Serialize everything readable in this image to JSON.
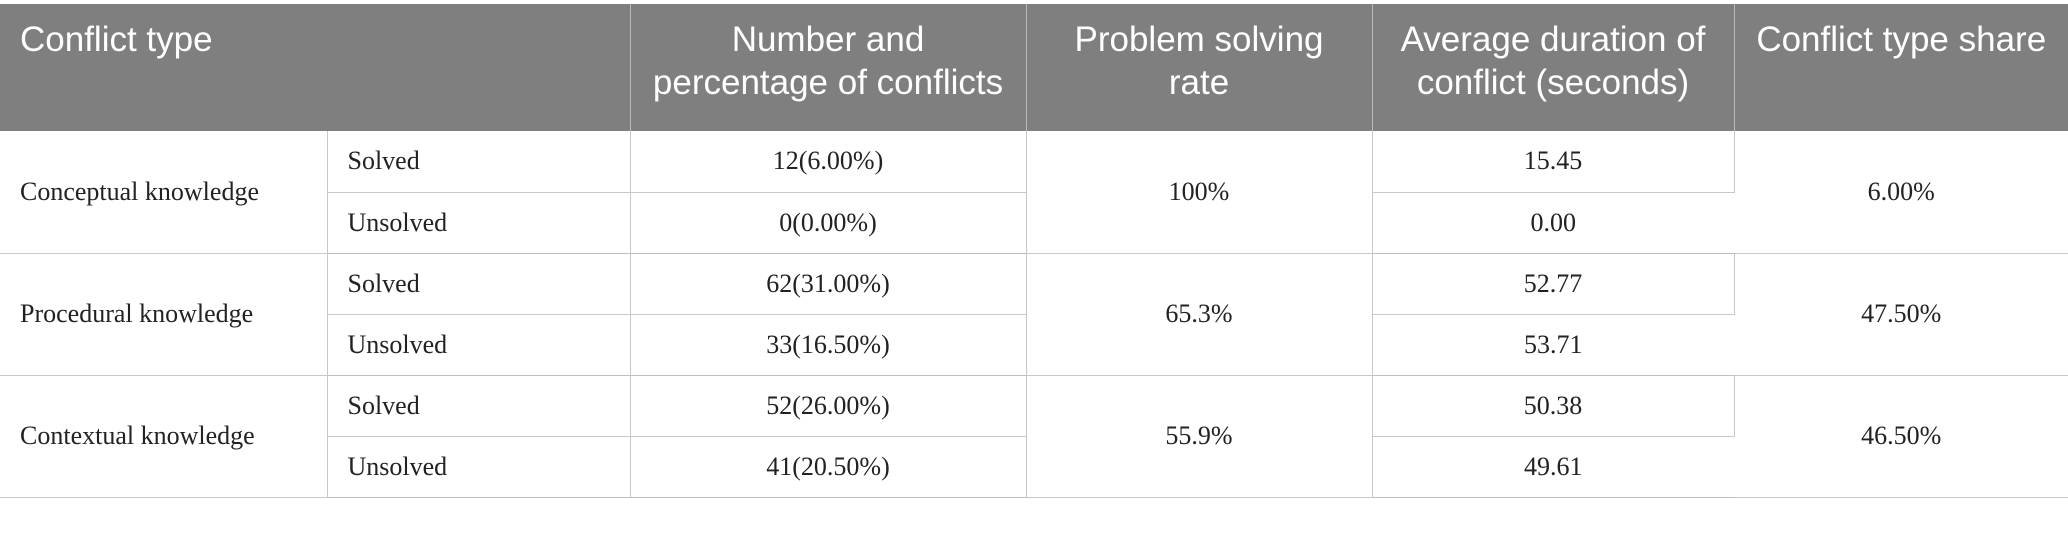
{
  "header": {
    "conflict_type": "Conflict type",
    "number_percentage": "Number and percentage of conflicts",
    "problem_solving_rate": "Problem solving rate",
    "average_duration": "Average duration of conflict (seconds)",
    "type_share": "Conflict type share"
  },
  "groups": [
    {
      "type": "Conceptual knowledge",
      "rate": "100%",
      "share": "6.00%",
      "rows": [
        {
          "status": "Solved",
          "count": "12(6.00%)",
          "duration": "15.45"
        },
        {
          "status": "Unsolved",
          "count": "0(0.00%)",
          "duration": "0.00"
        }
      ]
    },
    {
      "type": "Procedural knowledge",
      "rate": "65.3%",
      "share": "47.50%",
      "rows": [
        {
          "status": "Solved",
          "count": "62(31.00%)",
          "duration": "52.77"
        },
        {
          "status": "Unsolved",
          "count": "33(16.50%)",
          "duration": "53.71"
        }
      ]
    },
    {
      "type": "Contextual knowledge",
      "rate": "55.9%",
      "share": "46.50%",
      "rows": [
        {
          "status": "Solved",
          "count": "52(26.00%)",
          "duration": "50.38"
        },
        {
          "status": "Unsolved",
          "count": "41(20.50%)",
          "duration": "49.61"
        }
      ]
    }
  ]
}
